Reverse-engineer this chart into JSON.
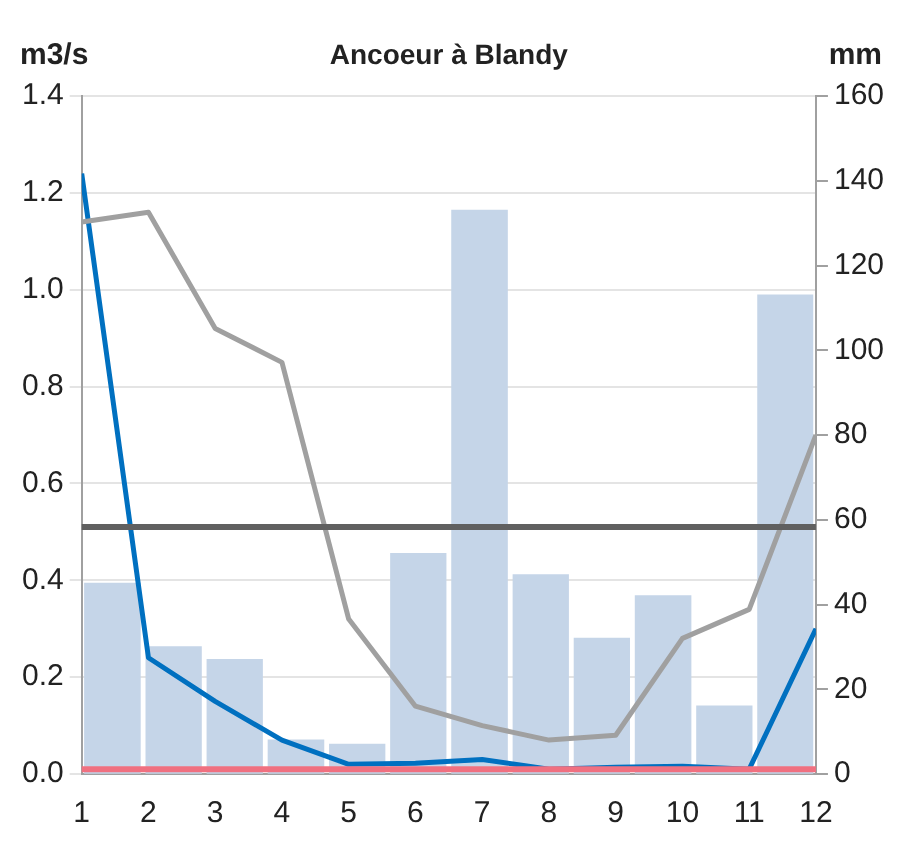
{
  "chart_data": {
    "type": "line",
    "title": "Ancoeur à Blandy",
    "ylabel": "m3/s",
    "y2label": "mm",
    "x": [
      1,
      2,
      3,
      4,
      5,
      6,
      7,
      8,
      9,
      10,
      11,
      12
    ],
    "xlim": [
      1,
      12
    ],
    "xticks": [
      1,
      2,
      3,
      4,
      5,
      6,
      7,
      8,
      9,
      10,
      11,
      12
    ],
    "ylim": [
      0,
      1.4
    ],
    "yticks": [
      {
        "value": 0,
        "label": "0.0"
      },
      0.2,
      0.4,
      0.6,
      0.8,
      {
        "value": 1,
        "label": "1.0"
      },
      1.2,
      1.4
    ],
    "y2lim": [
      0,
      160
    ],
    "y2ticks": [
      0,
      20,
      40,
      60,
      80,
      100,
      120,
      140,
      160
    ],
    "series": [
      {
        "type": "bar",
        "axis": "y2",
        "color": "#c5d5e8",
        "x": [
          1.46,
          2.38,
          3.29,
          4.21,
          5.13,
          6.04,
          6.96,
          7.88,
          8.79,
          9.71,
          10.63,
          11.54
        ],
        "values": [
          45,
          30,
          27,
          8,
          7,
          52,
          133,
          47,
          32,
          42,
          16,
          113
        ]
      },
      {
        "color": "#a0a0a0",
        "values": [
          1.14,
          1.16,
          0.92,
          0.85,
          0.32,
          0.14,
          0.1,
          0.07,
          0.08,
          0.28,
          0.34,
          0.7
        ]
      },
      {
        "color": "#0070c0",
        "values": [
          1.24,
          0.24,
          0.15,
          0.07,
          0.02,
          0.022,
          0.03,
          0.01,
          0.014,
          0.016,
          0.01,
          0.3
        ]
      }
    ],
    "ref_lines": [
      {
        "axis": "y",
        "value": 0.51,
        "color": "#606060"
      },
      {
        "axis": "y",
        "value": 0.01,
        "color": "#f07080"
      }
    ],
    "grid": "y",
    "legend": false,
    "marker": "none",
    "line_style": "solid"
  }
}
